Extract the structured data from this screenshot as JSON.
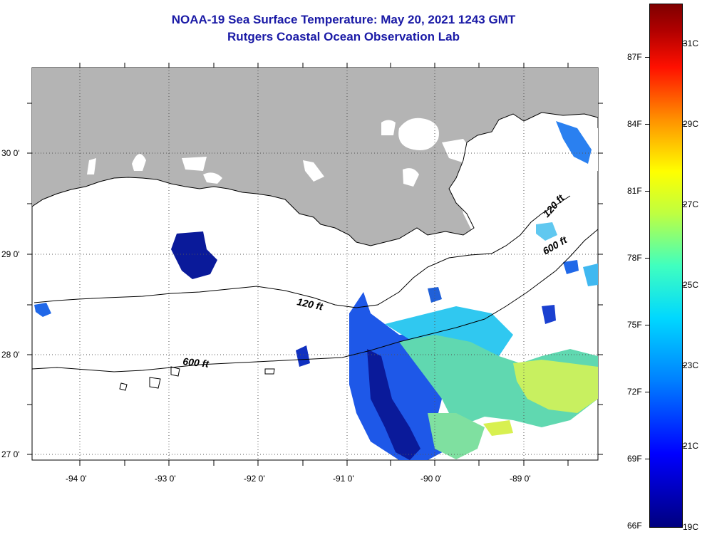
{
  "title": {
    "line1": "NOAA-19 Sea Surface Temperature:  May 20, 2021 1243 GMT",
    "line2": "Rutgers Coastal Ocean Observation Lab"
  },
  "map": {
    "lat_labels": [
      "30 0'",
      "29 0'",
      "28 0'",
      "27 0'"
    ],
    "lon_labels": [
      "-94 0'",
      "-93 0'",
      "-92 0'",
      "-91 0'",
      "-90 0'",
      "-89 0'"
    ],
    "isobath_labels": [
      "120 ft",
      "600 ft",
      "120 ft",
      "600 ft"
    ],
    "colors": {
      "land": "#b4b4b4",
      "cloud": "#ffffff"
    }
  },
  "colorbar": {
    "fahrenheit": [
      "87F",
      "84F",
      "81F",
      "78F",
      "75F",
      "72F",
      "69F",
      "66F"
    ],
    "celsius": [
      "31C",
      "29C",
      "27C",
      "25C",
      "23C",
      "21C",
      "19C"
    ],
    "colors": [
      "#00007f",
      "#0000ff",
      "#00d8ff",
      "#ffff00",
      "#ff1000",
      "#7f0000"
    ]
  }
}
